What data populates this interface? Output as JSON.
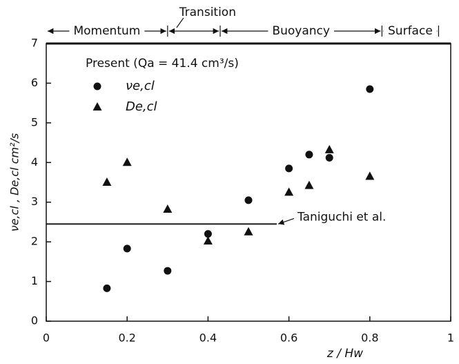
{
  "chart_data": {
    "type": "scatter",
    "x_label": "z / Hw",
    "y_label": "νe,cl ,  De,cl   cm²/s",
    "legend_title": "Present (Qa = 41.4 cm³/s)",
    "xlim": [
      0,
      1
    ],
    "xticks": [
      0,
      0.2,
      0.4,
      0.6,
      0.8,
      1
    ],
    "ylim": [
      0,
      7
    ],
    "yticks": [
      0,
      1,
      2,
      3,
      4,
      5,
      6,
      7
    ],
    "series": [
      {
        "name": "νe,cl",
        "marker": "circle",
        "color": "#111111",
        "x": [
          0.15,
          0.2,
          0.3,
          0.4,
          0.5,
          0.6,
          0.65,
          0.7,
          0.8
        ],
        "values": [
          0.83,
          1.83,
          1.27,
          2.2,
          3.05,
          3.85,
          4.2,
          4.12,
          5.85
        ]
      },
      {
        "name": "De,cl",
        "marker": "triangle",
        "color": "#111111",
        "x": [
          0.15,
          0.2,
          0.3,
          0.4,
          0.5,
          0.6,
          0.65,
          0.7,
          0.8
        ],
        "values": [
          3.5,
          4.0,
          2.82,
          2.02,
          2.25,
          3.25,
          3.42,
          4.32,
          3.65
        ]
      }
    ],
    "reference": {
      "name": "Taniguchi et al.",
      "x": [
        0,
        0.57
      ],
      "values": [
        2.45,
        2.45
      ]
    },
    "regimes": [
      {
        "label": "Momentum",
        "start": 0,
        "end": 0.3
      },
      {
        "label": "Transition",
        "start": 0.3,
        "end": 0.43
      },
      {
        "label": "Buoyancy",
        "start": 0.43,
        "end": 0.83
      },
      {
        "label": "Surface",
        "start": 0.83,
        "end": 0.97
      }
    ]
  }
}
